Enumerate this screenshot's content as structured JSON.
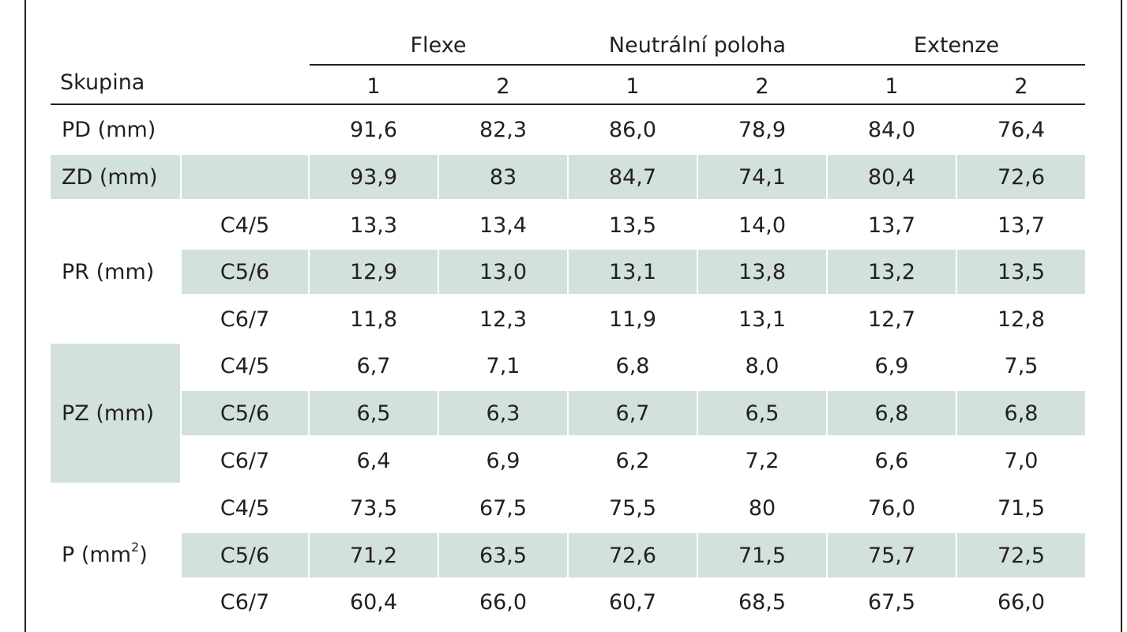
{
  "header": {
    "skupina_label": "Skupina",
    "groups": [
      "Flexe",
      "Neutrální poloha",
      "Extenze"
    ],
    "sub_columns": [
      "1",
      "2",
      "1",
      "2",
      "1",
      "2"
    ]
  },
  "rows": [
    {
      "label": "PD (mm)",
      "sub": "",
      "values": [
        "91,6",
        "82,3",
        "86,0",
        "78,9",
        "84,0",
        "76,4"
      ]
    },
    {
      "label": "ZD (mm)",
      "sub": "",
      "values": [
        "93,9",
        "83",
        "84,7",
        "74,1",
        "80,4",
        "72,6"
      ]
    },
    {
      "label": "PR (mm)",
      "sub": "C4/5",
      "values": [
        "13,3",
        "13,4",
        "13,5",
        "14,0",
        "13,7",
        "13,7"
      ]
    },
    {
      "label": "",
      "sub": "C5/6",
      "values": [
        "12,9",
        "13,0",
        "13,1",
        "13,8",
        "13,2",
        "13,5"
      ]
    },
    {
      "label": "",
      "sub": "C6/7",
      "values": [
        "11,8",
        "12,3",
        "11,9",
        "13,1",
        "12,7",
        "12,8"
      ]
    },
    {
      "label": "PZ (mm)",
      "sub": "C4/5",
      "values": [
        "6,7",
        "7,1",
        "6,8",
        "8,0",
        "6,9",
        "7,5"
      ]
    },
    {
      "label": "",
      "sub": "C5/6",
      "values": [
        "6,5",
        "6,3",
        "6,7",
        "6,5",
        "6,8",
        "6,8"
      ]
    },
    {
      "label": "",
      "sub": "C6/7",
      "values": [
        "6,4",
        "6,9",
        "6,2",
        "7,2",
        "6,6",
        "7,0"
      ]
    },
    {
      "label": "P (mm",
      "label_sup": "2",
      "label_after": ")",
      "sub": "C4/5",
      "values": [
        "73,5",
        "67,5",
        "75,5",
        "80",
        "76,0",
        "71,5"
      ]
    },
    {
      "label": "",
      "sub": "C5/6",
      "values": [
        "71,2",
        "63,5",
        "72,6",
        "71,5",
        "75,7",
        "72,5"
      ]
    },
    {
      "label": "",
      "sub": "C6/7",
      "values": [
        "60,4",
        "66,0",
        "60,7",
        "68,5",
        "67,5",
        "66,0"
      ]
    }
  ],
  "colors": {
    "shade": "#d3e1de",
    "text": "#231f20"
  }
}
